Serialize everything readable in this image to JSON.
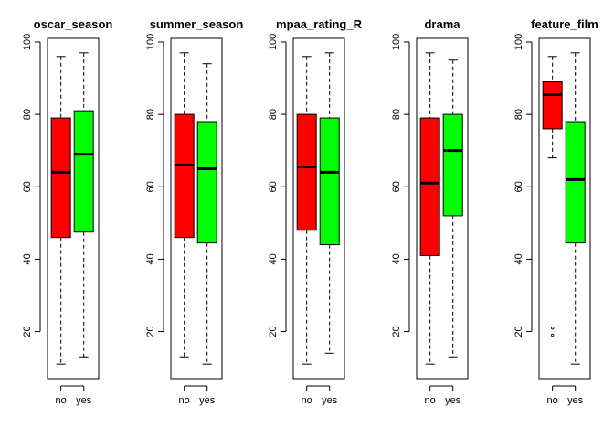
{
  "chart_data": [
    {
      "type": "boxplot",
      "title": "oscar_season",
      "categories": [
        "no",
        "yes"
      ],
      "ylim": [
        7,
        101
      ],
      "yticks": [
        20,
        40,
        60,
        80,
        100
      ],
      "boxes": [
        {
          "name": "no",
          "whisker_low": 11,
          "q1": 46,
          "median": 64,
          "q3": 79,
          "whisker_high": 96,
          "outliers": [],
          "color": "#ff0000"
        },
        {
          "name": "yes",
          "whisker_low": 13,
          "q1": 47.5,
          "median": 69,
          "q3": 81,
          "whisker_high": 97,
          "outliers": [],
          "color": "#00ff00"
        }
      ]
    },
    {
      "type": "boxplot",
      "title": "summer_season",
      "categories": [
        "no",
        "yes"
      ],
      "ylim": [
        7,
        101
      ],
      "yticks": [
        20,
        40,
        60,
        80,
        100
      ],
      "boxes": [
        {
          "name": "no",
          "whisker_low": 13,
          "q1": 46,
          "median": 66,
          "q3": 80,
          "whisker_high": 97,
          "outliers": [],
          "color": "#ff0000"
        },
        {
          "name": "yes",
          "whisker_low": 11,
          "q1": 44.5,
          "median": 65,
          "q3": 78,
          "whisker_high": 94,
          "outliers": [],
          "color": "#00ff00"
        }
      ]
    },
    {
      "type": "boxplot",
      "title": "mpaa_rating_R",
      "categories": [
        "no",
        "yes"
      ],
      "ylim": [
        7,
        101
      ],
      "yticks": [
        20,
        40,
        60,
        80,
        100
      ],
      "boxes": [
        {
          "name": "no",
          "whisker_low": 11,
          "q1": 48,
          "median": 65.5,
          "q3": 80,
          "whisker_high": 96,
          "outliers": [],
          "color": "#ff0000"
        },
        {
          "name": "yes",
          "whisker_low": 14,
          "q1": 44,
          "median": 64,
          "q3": 79,
          "whisker_high": 97,
          "outliers": [],
          "color": "#00ff00"
        }
      ]
    },
    {
      "type": "boxplot",
      "title": "drama",
      "categories": [
        "no",
        "yes"
      ],
      "ylim": [
        7,
        101
      ],
      "yticks": [
        20,
        40,
        60,
        80,
        100
      ],
      "boxes": [
        {
          "name": "no",
          "whisker_low": 11,
          "q1": 41,
          "median": 61,
          "q3": 79,
          "whisker_high": 97,
          "outliers": [],
          "color": "#ff0000"
        },
        {
          "name": "yes",
          "whisker_low": 13,
          "q1": 52,
          "median": 70,
          "q3": 80,
          "whisker_high": 95,
          "outliers": [],
          "color": "#00ff00"
        }
      ]
    },
    {
      "type": "boxplot",
      "title": "feature_film",
      "categories": [
        "no",
        "yes"
      ],
      "ylim": [
        7,
        101
      ],
      "yticks": [
        20,
        40,
        60,
        80,
        100
      ],
      "boxes": [
        {
          "name": "no",
          "whisker_low": 68,
          "q1": 76,
          "median": 85.5,
          "q3": 89,
          "whisker_high": 96,
          "outliers": [
            19,
            21
          ],
          "color": "#ff0000"
        },
        {
          "name": "yes",
          "whisker_low": 11,
          "q1": 44.5,
          "median": 62,
          "q3": 78,
          "whisker_high": 97,
          "outliers": [],
          "color": "#00ff00"
        }
      ]
    }
  ]
}
